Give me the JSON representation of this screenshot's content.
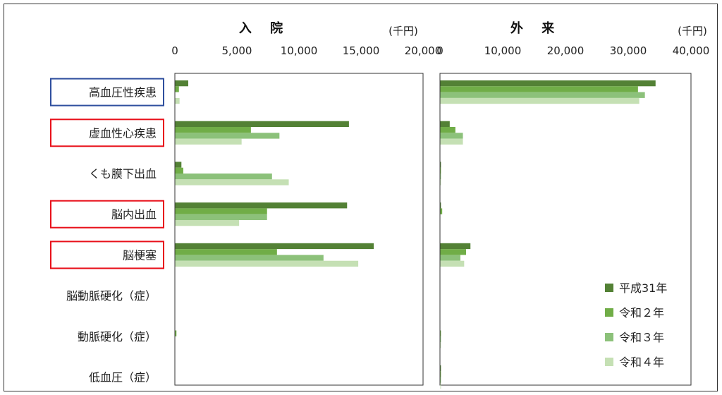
{
  "chart_data": [
    {
      "type": "bar",
      "orientation": "horizontal",
      "title": "入 院",
      "unit": "(千円)",
      "categories": [
        "高血圧性疾患",
        "虚血性心疾患",
        "くも膜下出血",
        "脳内出血",
        "脳梗塞",
        "脳動脈硬化（症）",
        "動脈硬化（症）",
        "低血圧（症）"
      ],
      "xlim": [
        0,
        20000
      ],
      "ticks": [
        "0",
        "5,000",
        "10,000",
        "15,000",
        "20,000"
      ],
      "series": [
        {
          "name": "平成31年",
          "values": [
            1050,
            14000,
            500,
            13850,
            16000,
            0,
            0,
            0
          ]
        },
        {
          "name": "令和２年",
          "values": [
            300,
            6100,
            650,
            7400,
            8200,
            0,
            100,
            0
          ]
        },
        {
          "name": "令和３年",
          "values": [
            0,
            8400,
            7800,
            7400,
            11950,
            0,
            0,
            0
          ]
        },
        {
          "name": "令和４年",
          "values": [
            350,
            5350,
            9150,
            5150,
            14750,
            0,
            0,
            0
          ]
        }
      ]
    },
    {
      "type": "bar",
      "orientation": "horizontal",
      "title": "外 来",
      "unit": "(千円)",
      "categories": [
        "高血圧性疾患",
        "虚血性心疾患",
        "くも膜下出血",
        "脳内出血",
        "脳梗塞",
        "脳動脈硬化（症）",
        "動脈硬化（症）",
        "低血圧（症）"
      ],
      "xlim": [
        0,
        40000
      ],
      "ticks": [
        "0",
        "10,000",
        "20,000",
        "30,000",
        "40,000"
      ],
      "series": [
        {
          "name": "平成31年",
          "values": [
            34300,
            1500,
            100,
            100,
            4800,
            0,
            0,
            100
          ]
        },
        {
          "name": "令和２年",
          "values": [
            31500,
            2400,
            100,
            300,
            4100,
            0,
            100,
            100
          ]
        },
        {
          "name": "令和３年",
          "values": [
            32600,
            3600,
            100,
            0,
            3200,
            0,
            100,
            100
          ]
        },
        {
          "name": "令和４年",
          "values": [
            31700,
            3600,
            100,
            0,
            3800,
            0,
            100,
            100
          ]
        }
      ]
    }
  ],
  "highlighted_categories": [
    {
      "index": 0,
      "color": "#2f4f9e"
    },
    {
      "index": 1,
      "color": "#e8101a"
    },
    {
      "index": 3,
      "color": "#e8101a"
    },
    {
      "index": 4,
      "color": "#e8101a"
    }
  ],
  "series_colors": [
    "#538135",
    "#70ad47",
    "#8cc17a",
    "#c5e0b4"
  ],
  "legend": {
    "position": "bottom-right",
    "entries": [
      "平成31年",
      "令和２年",
      "令和３年",
      "令和４年"
    ]
  }
}
